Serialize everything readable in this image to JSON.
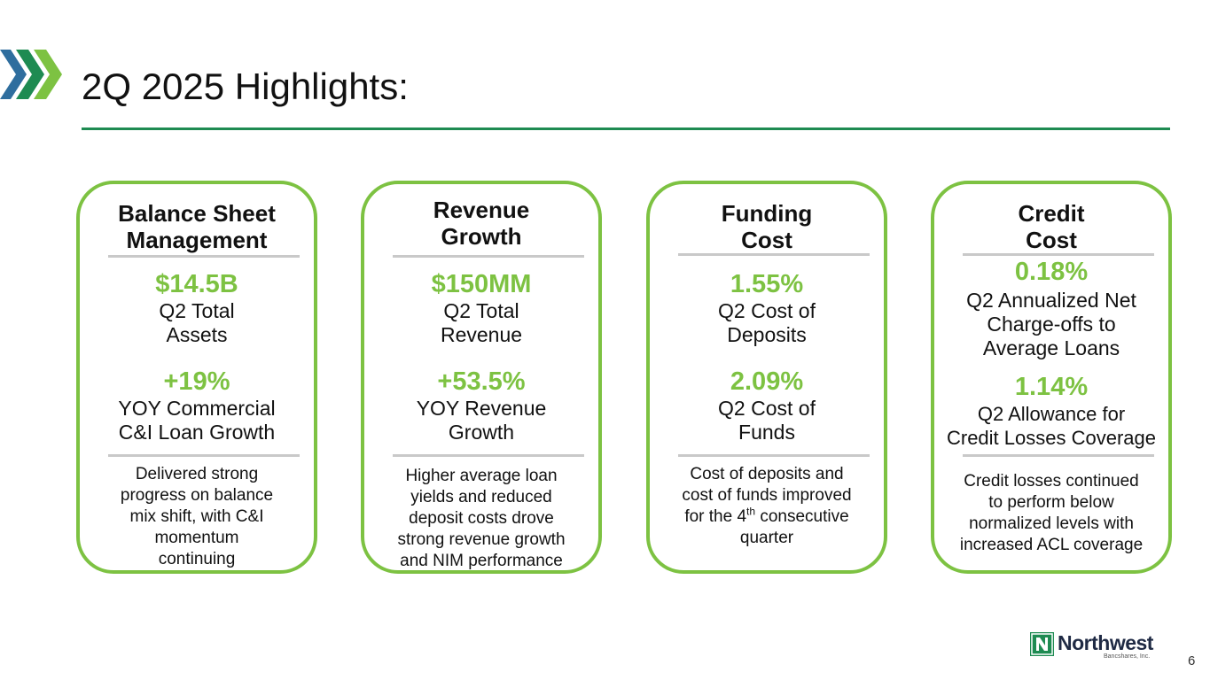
{
  "slide": {
    "title": "2Q 2025 Highlights:",
    "page_number": "6"
  },
  "colors": {
    "accent_green": "#7dc242",
    "rule_green": "#1e8b52",
    "chevron_blue": "#2f6e9e",
    "divider_gray": "#c9c9c9"
  },
  "logo": {
    "name": "Northwest",
    "subtitle": "Bancshares, Inc."
  },
  "cards": [
    {
      "heading": [
        "Balance Sheet",
        "Management"
      ],
      "metric1": {
        "value": "$14.5B",
        "label": [
          "Q2 Total",
          "Assets"
        ]
      },
      "metric2": {
        "value": "+19%",
        "label": [
          "YOY Commercial",
          "C&I Loan Growth"
        ]
      },
      "note": [
        "Delivered strong",
        "progress on balance",
        "mix shift, with C&I",
        "momentum",
        "continuing"
      ]
    },
    {
      "heading": [
        "Revenue",
        "Growth"
      ],
      "metric1": {
        "value": "$150MM",
        "label": [
          "Q2 Total",
          "Revenue"
        ]
      },
      "metric2": {
        "value": "+53.5%",
        "label": [
          "YOY Revenue",
          "Growth"
        ]
      },
      "note": [
        "Higher average loan",
        "yields and reduced",
        "deposit costs drove",
        "strong revenue growth",
        "and NIM performance"
      ]
    },
    {
      "heading": [
        "Funding",
        "Cost"
      ],
      "metric1": {
        "value": "1.55%",
        "label": [
          "Q2 Cost of",
          "Deposits"
        ]
      },
      "metric2": {
        "value": "2.09%",
        "label": [
          "Q2 Cost of",
          "Funds"
        ]
      },
      "note": [
        "Cost of deposits and",
        "cost of funds improved",
        "for the 4",
        "th",
        " consecutive",
        "quarter"
      ]
    },
    {
      "heading": [
        "Credit",
        "Cost"
      ],
      "metric1": {
        "value": "0.18%",
        "label": [
          "Q2 Annualized Net",
          "Charge-offs to",
          "Average Loans"
        ]
      },
      "metric2": {
        "value": "1.14%",
        "label": [
          "Q2 Allowance for",
          "Credit Losses Coverage"
        ]
      },
      "note": [
        "Credit losses continued",
        "to perform below",
        "normalized levels with",
        "increased ACL coverage"
      ]
    }
  ]
}
